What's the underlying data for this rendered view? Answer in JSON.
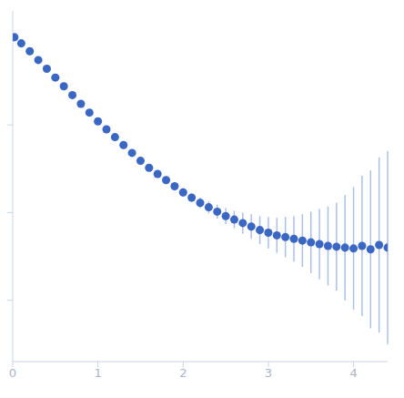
{
  "chart_data": {
    "type": "scatter",
    "tick_labels": "x",
    "color": "#3b67c4",
    "marker": "circle",
    "xlim": [
      0,
      4.4
    ],
    "xticks": [
      0,
      1,
      2,
      3,
      4
    ],
    "ylim": [
      0.3,
      4.3
    ],
    "yticks": [
      1,
      2,
      3
    ],
    "x": [
      0.02,
      0.1,
      0.2,
      0.3,
      0.4,
      0.5,
      0.6,
      0.7,
      0.8,
      0.9,
      1.0,
      1.1,
      1.2,
      1.3,
      1.4,
      1.5,
      1.6,
      1.7,
      1.8,
      1.9,
      2.0,
      2.1,
      2.2,
      2.3,
      2.4,
      2.5,
      2.6,
      2.7,
      2.8,
      2.9,
      3.0,
      3.1,
      3.2,
      3.3,
      3.4,
      3.5,
      3.6,
      3.7,
      3.8,
      3.9,
      4.0,
      4.1,
      4.2,
      4.3,
      4.4
    ],
    "values": [
      4.0,
      3.93,
      3.84,
      3.74,
      3.64,
      3.54,
      3.44,
      3.34,
      3.24,
      3.14,
      3.04,
      2.95,
      2.86,
      2.77,
      2.68,
      2.59,
      2.51,
      2.44,
      2.37,
      2.3,
      2.23,
      2.17,
      2.11,
      2.06,
      2.01,
      1.96,
      1.92,
      1.88,
      1.84,
      1.8,
      1.77,
      1.74,
      1.72,
      1.7,
      1.68,
      1.66,
      1.64,
      1.62,
      1.61,
      1.6,
      1.59,
      1.62,
      1.58,
      1.63,
      1.6
    ],
    "error": [
      0.01,
      0.01,
      0.01,
      0.01,
      0.01,
      0.01,
      0.01,
      0.01,
      0.01,
      0.02,
      0.02,
      0.02,
      0.02,
      0.02,
      0.02,
      0.03,
      0.03,
      0.03,
      0.04,
      0.04,
      0.05,
      0.05,
      0.06,
      0.07,
      0.08,
      0.09,
      0.1,
      0.12,
      0.14,
      0.16,
      0.18,
      0.2,
      0.23,
      0.26,
      0.3,
      0.35,
      0.4,
      0.45,
      0.5,
      0.6,
      0.7,
      0.8,
      0.9,
      1.0,
      1.1
    ]
  }
}
